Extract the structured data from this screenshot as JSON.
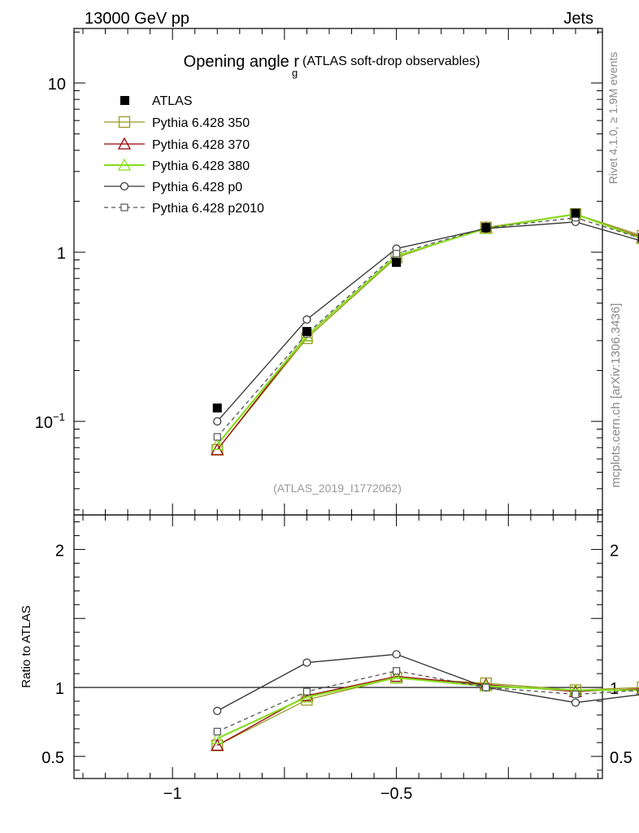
{
  "header": {
    "left": "13000 GeV pp",
    "right": "Jets"
  },
  "side_labels": {
    "rivet": "Rivet 4.1.0, ≥ 1.9M events",
    "mcplots": "mcplots.cern.ch [arXiv:1306.3436]"
  },
  "chart_data": [
    {
      "type": "line",
      "title_main": "Opening angle r",
      "title_sub": "g",
      "title_paren": "(ATLAS soft-drop observables)",
      "analysis_label": "(ATLAS_2019_I1772062)",
      "yscale": "log",
      "xlim": [
        -1.22,
        -0.04
      ],
      "ylim": [
        0.028,
        21
      ],
      "xticks_major": [
        -1.0,
        -0.5
      ],
      "yticks": [
        {
          "value": 10,
          "label": "10"
        },
        {
          "value": 1,
          "label": "1"
        },
        {
          "value": 0.1,
          "label": "10",
          "exp": "−1"
        }
      ],
      "x": [
        -0.9,
        -0.7,
        -0.5,
        -0.3,
        -0.1,
        0.05
      ],
      "data": {
        "name": "ATLAS",
        "values": [
          0.12,
          0.34,
          0.87,
          1.4,
          1.7,
          1.22
        ]
      },
      "series": [
        {
          "name": "Pythia 6.428 350",
          "color": "#999922",
          "marker": "square",
          "dash": "",
          "values": [
            0.068,
            0.31,
            0.93,
            1.4,
            1.68,
            1.25
          ]
        },
        {
          "name": "Pythia 6.428 370",
          "color": "#990000",
          "marker": "triangle",
          "dash": "",
          "values": [
            0.068,
            0.32,
            0.95,
            1.39,
            1.67,
            1.22
          ]
        },
        {
          "name": "Pythia 6.428 380",
          "color": "#88dd22",
          "marker": "triangle",
          "dash": "",
          "width": 2.2,
          "values": [
            0.073,
            0.32,
            0.95,
            1.38,
            1.68,
            1.2
          ]
        },
        {
          "name": "Pythia 6.428 p0",
          "color": "#333333",
          "marker": "circle",
          "dash": "",
          "values": [
            0.1,
            0.4,
            1.05,
            1.38,
            1.51,
            1.16
          ]
        },
        {
          "name": "Pythia 6.428 p2010",
          "color": "#555555",
          "marker": "square-small",
          "dash": "5,4",
          "values": [
            0.081,
            0.33,
            0.98,
            1.39,
            1.6,
            1.2
          ]
        }
      ]
    },
    {
      "type": "line",
      "ylabel": "Ratio to ATLAS",
      "xlim": [
        -1.22,
        -0.04
      ],
      "ylim": [
        0.34,
        2.25
      ],
      "xticks_major": [
        {
          "value": -1.0,
          "label": "−1"
        },
        {
          "value": -0.5,
          "label": "−0.5"
        }
      ],
      "yticks": [
        {
          "value": 2,
          "label": "2"
        },
        {
          "value": 1,
          "label": "1"
        },
        {
          "value": 0.5,
          "label": "0.5"
        }
      ],
      "reference": 1,
      "x": [
        -0.9,
        -0.7,
        -0.5,
        -0.3,
        -0.1,
        0.05
      ],
      "series": [
        {
          "name": "Pythia 6.428 350",
          "color": "#999922",
          "marker": "square",
          "dash": "",
          "values": [
            0.58,
            0.91,
            1.07,
            1.03,
            0.98,
            1.0
          ]
        },
        {
          "name": "Pythia 6.428 370",
          "color": "#990000",
          "marker": "triangle",
          "dash": "",
          "values": [
            0.58,
            0.94,
            1.08,
            1.02,
            0.97,
            0.99
          ]
        },
        {
          "name": "Pythia 6.428 380",
          "color": "#88dd22",
          "marker": "triangle",
          "dash": "",
          "width": 2.2,
          "values": [
            0.63,
            0.93,
            1.07,
            1.01,
            0.98,
            0.98
          ]
        },
        {
          "name": "Pythia 6.428 p0",
          "color": "#333333",
          "marker": "circle",
          "dash": "",
          "values": [
            0.83,
            1.18,
            1.24,
            1.0,
            0.89,
            0.95
          ]
        },
        {
          "name": "Pythia 6.428 p2010",
          "color": "#555555",
          "marker": "square-small",
          "dash": "5,4",
          "values": [
            0.68,
            0.97,
            1.12,
            1.0,
            0.95,
            0.98
          ]
        }
      ]
    }
  ]
}
